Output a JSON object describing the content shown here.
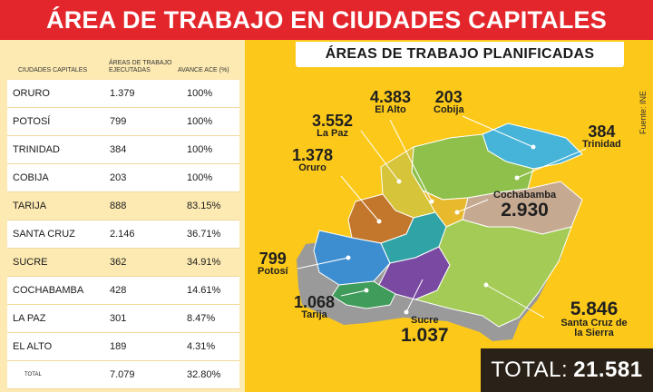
{
  "header": {
    "title": "ÁREA DE TRABAJO EN CIUDADES CAPITALES"
  },
  "table": {
    "col_city": "CIUDADES CAPITALES",
    "col_exec": "ÁREAS DE TRABAJO EJECUTADAS",
    "col_adv": "AVANCE ACE (%)",
    "rows": [
      {
        "city": "ORURO",
        "exec": "1.379",
        "adv": "100%"
      },
      {
        "city": "POTOSÍ",
        "exec": "799",
        "adv": "100%"
      },
      {
        "city": "TRINIDAD",
        "exec": "384",
        "adv": "100%"
      },
      {
        "city": "COBIJA",
        "exec": "203",
        "adv": "100%"
      },
      {
        "city": "TARIJA",
        "exec": "888",
        "adv": "83.15%"
      },
      {
        "city": "SANTA CRUZ",
        "exec": "2.146",
        "adv": "36.71%"
      },
      {
        "city": "SUCRE",
        "exec": "362",
        "adv": "34.91%"
      },
      {
        "city": "COCHABAMBA",
        "exec": "428",
        "adv": "14.61%"
      },
      {
        "city": "LA PAZ",
        "exec": "301",
        "adv": "8.47%"
      },
      {
        "city": "EL ALTO",
        "exec": "189",
        "adv": "4.31%"
      },
      {
        "city": "TOTAL",
        "exec": "7.079",
        "adv": "32.80%"
      }
    ]
  },
  "map": {
    "subtitle": "ÁREAS DE TRABAJO PLANIFICADAS",
    "source": "Fuente: INE",
    "labels": {
      "la_paz": {
        "value": "3.552",
        "name": "La Paz"
      },
      "el_alto": {
        "value": "4.383",
        "name": "El Alto"
      },
      "cobija": {
        "value": "203",
        "name": "Cobija"
      },
      "trinidad": {
        "value": "384",
        "name": "Trinidad"
      },
      "oruro": {
        "value": "1.378",
        "name": "Oruro"
      },
      "cochabamba": {
        "value": "2.930",
        "name": "Cochabamba"
      },
      "potosi": {
        "value": "799",
        "name": "Potosí"
      },
      "tarija": {
        "value": "1.068",
        "name": "Tarija"
      },
      "sucre": {
        "value": "1.037",
        "name": "Sucre"
      },
      "santa_cruz": {
        "value": "5.846",
        "name": "Santa Cruz de la Sierra"
      }
    },
    "total_label": "TOTAL:",
    "total_value": "21.581"
  },
  "colors": {
    "header_red": "#e3262b",
    "panel_yellow": "#fcc91a",
    "table_cream": "#fdeab2",
    "total_dark": "#2a2218"
  }
}
